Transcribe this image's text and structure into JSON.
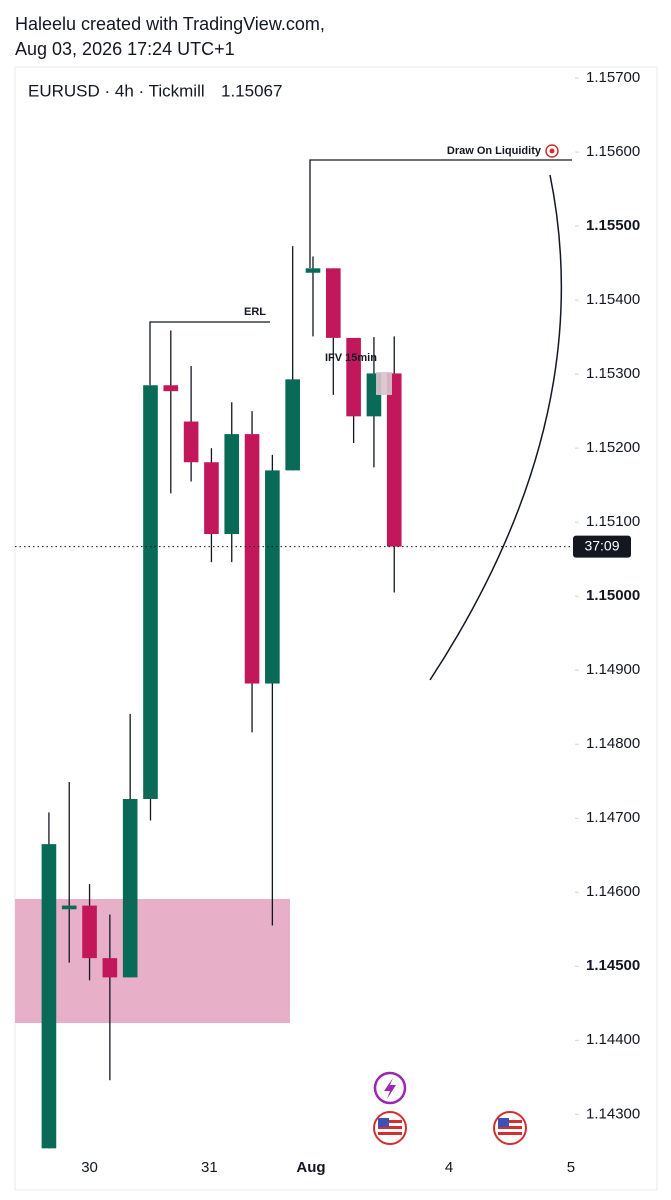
{
  "header": {
    "line1": "Haleelu created with TradingView.com,",
    "line2": "Aug 03, 2026 17:24 UTC+1"
  },
  "chart_data": {
    "type": "candlestick",
    "title": "EURUSD · 4h · Tickmill",
    "last_price": 1.15067,
    "last_price_color": "#c2185b",
    "countdown": "37:09",
    "up_color": "#0a6a58",
    "down_color": "#c2185b",
    "open": [
      1.14254,
      1.14577,
      1.14582,
      1.14511,
      1.14485,
      1.14726,
      1.15285,
      1.15236,
      1.15181,
      1.15084,
      1.15219,
      1.14882,
      1.1517,
      1.15437,
      1.15443,
      1.15349,
      1.15243,
      1.15301
    ],
    "high": [
      1.14708,
      1.14749,
      1.14611,
      1.1457,
      1.14841,
      1.15285,
      1.15359,
      1.15311,
      1.152,
      1.15262,
      1.1525,
      1.15191,
      1.15473,
      1.15459,
      1.15443,
      1.15349,
      1.1535,
      1.15351
    ],
    "low": [
      1.14254,
      1.14505,
      1.14481,
      1.14346,
      1.14485,
      1.14697,
      1.15139,
      1.15155,
      1.15046,
      1.15046,
      1.14816,
      1.14555,
      1.1517,
      1.15351,
      1.15272,
      1.15207,
      1.15174,
      1.15005
    ],
    "close": [
      1.14665,
      1.14582,
      1.14511,
      1.14485,
      1.14726,
      1.15285,
      1.15277,
      1.15181,
      1.15084,
      1.15219,
      1.14882,
      1.1517,
      1.15293,
      1.15443,
      1.15349,
      1.15243,
      1.15301,
      1.15067
    ],
    "xlim": [
      -1.67,
      25.8
    ],
    "xticks": [
      {
        "value": 2,
        "label": "30"
      },
      {
        "value": 7.9,
        "label": "31"
      },
      {
        "value": 12.9,
        "label": "Aug"
      },
      {
        "value": 19.7,
        "label": "4"
      },
      {
        "value": 25.7,
        "label": "5"
      }
    ],
    "ylim": [
      1.14245,
      1.15715
    ],
    "yticks": [
      {
        "value": 1.157,
        "label": "1.15700"
      },
      {
        "value": 1.156,
        "label": "1.15600"
      },
      {
        "value": 1.155,
        "label": "1.15500",
        "bold": true
      },
      {
        "value": 1.154,
        "label": "1.15400"
      },
      {
        "value": 1.153,
        "label": "1.15300"
      },
      {
        "value": 1.152,
        "label": "1.15200"
      },
      {
        "value": 1.151,
        "label": "1.15100"
      },
      {
        "value": 1.15,
        "label": "1.15000",
        "bold": true
      },
      {
        "value": 1.149,
        "label": "1.14900"
      },
      {
        "value": 1.148,
        "label": "1.14800"
      },
      {
        "value": 1.147,
        "label": "1.14700"
      },
      {
        "value": 1.146,
        "label": "1.14600"
      },
      {
        "value": 1.145,
        "label": "1.14500",
        "bold": true
      },
      {
        "value": 1.144,
        "label": "1.14400"
      },
      {
        "value": 1.143,
        "label": "1.14300"
      }
    ],
    "annotations": {
      "erl": "ERL",
      "draw_on_liquidity": "Draw On Liquidity",
      "ifvg": "IFV 15min"
    }
  }
}
